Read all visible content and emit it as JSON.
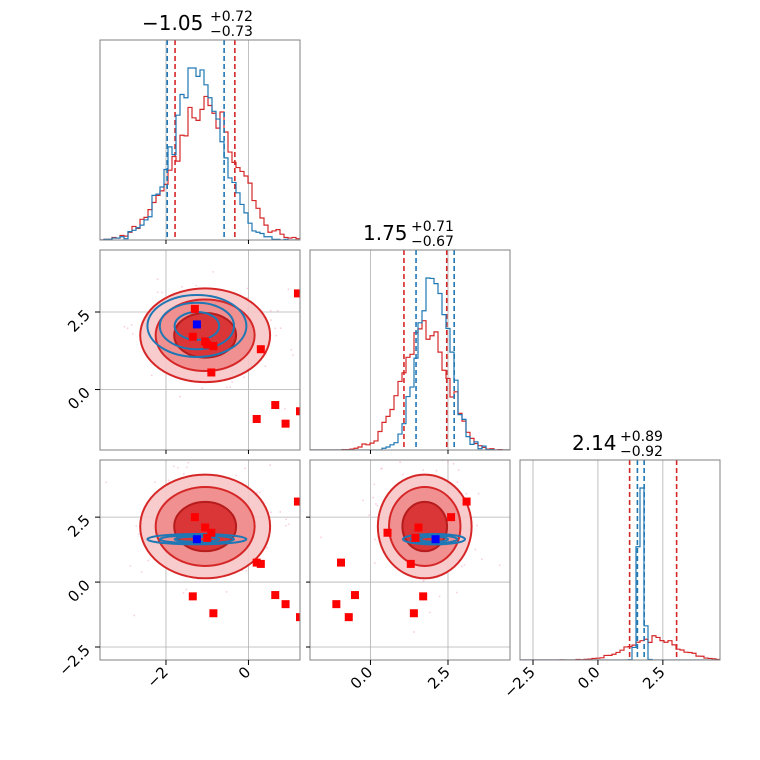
{
  "chart_data": {
    "type": "corner",
    "params": [
      {
        "title_value": "−1.05",
        "title_plus": "+0.72",
        "title_minus": "−0.73",
        "range": [
          -3.6,
          1.25
        ],
        "ticks": [
          {
            "v": -2,
            "label": "−2"
          },
          {
            "v": 0,
            "label": "0"
          }
        ]
      },
      {
        "title_value": "1.75",
        "title_plus": "+0.71",
        "title_minus": "−0.67",
        "range": [
          -1.95,
          4.5
        ],
        "ticks": [
          {
            "v": 0,
            "label": "0.0"
          },
          {
            "v": 2.5,
            "label": "2.5"
          }
        ]
      },
      {
        "title_value": "2.14",
        "title_plus": "+0.89",
        "title_minus": "−0.92",
        "range": [
          -3.0,
          4.7
        ],
        "ticks": [
          {
            "v": -2.5,
            "label": "−2.5"
          },
          {
            "v": 0,
            "label": "0.0"
          },
          {
            "v": 2.5,
            "label": "2.5"
          }
        ]
      }
    ],
    "series": [
      {
        "color": "#d62728",
        "means": [
          -1.05,
          1.75,
          2.14
        ],
        "sigmas": [
          0.75,
          0.72,
          0.95
        ],
        "quantiles": [
          [
            -1.78,
            -0.33
          ],
          [
            1.08,
            2.46
          ],
          [
            1.22,
            3.03
          ]
        ]
      },
      {
        "color": "#1f77b4",
        "means": [
          -1.25,
          2.05,
          1.65
        ],
        "sigmas": [
          0.6,
          0.5,
          0.1
        ],
        "quantiles": [
          [
            -1.97,
            -0.59
          ],
          [
            1.47,
            2.7
          ],
          [
            1.52,
            1.78
          ]
        ]
      }
    ],
    "markers": {
      "red": [
        [
          -1.3,
          2.6,
          2.5
        ],
        [
          -1.05,
          1.55,
          2.1
        ],
        [
          -1.0,
          1.45,
          1.7
        ],
        [
          -0.9,
          0.55,
          1.9
        ],
        [
          0.2,
          -0.95,
          0.75
        ],
        [
          0.65,
          -0.5,
          -0.5
        ],
        [
          0.9,
          -1.1,
          -0.85
        ],
        [
          1.25,
          -0.7,
          -1.35
        ],
        [
          1.2,
          3.1,
          3.1
        ],
        [
          -1.35,
          1.7,
          -0.55
        ],
        [
          -0.85,
          1.4,
          -1.2
        ],
        [
          0.3,
          1.3,
          0.7
        ]
      ],
      "blue": [
        -1.25,
        2.1,
        1.65
      ]
    },
    "grid": true
  }
}
